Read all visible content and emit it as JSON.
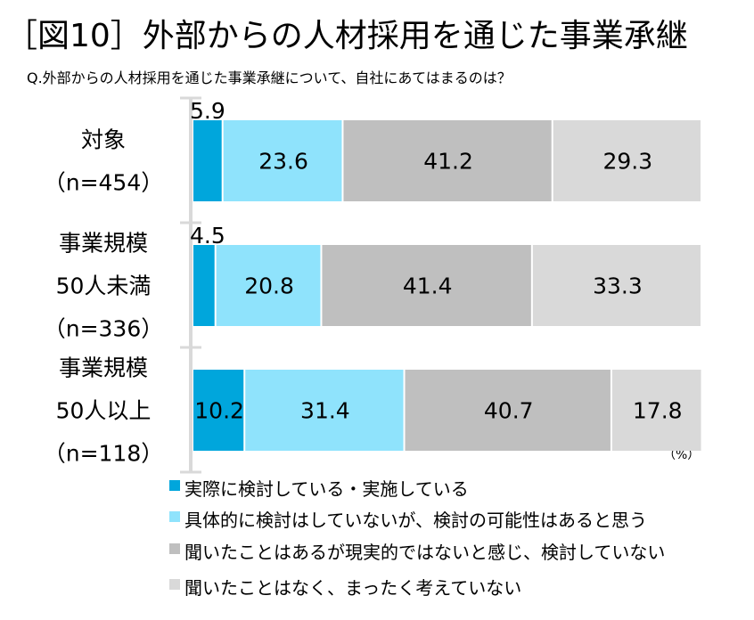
{
  "chart_data": {
    "type": "bar",
    "orientation": "horizontal",
    "stacked": true,
    "title": "［図10］外部からの人材採用を通じた事業承継",
    "subtitle": "Q.外部からの人材採用を通じた事業承継について、自社にあてはまるのは？",
    "unit_label": "（%）",
    "categories": [
      [
        "対象",
        "（n=454）"
      ],
      [
        "事業規模",
        "50人未満",
        "（n=336）"
      ],
      [
        "事業規模",
        "50人以上",
        "（n=118）"
      ]
    ],
    "series": [
      {
        "name": "実際に検討している・実施している",
        "color": "#00a6dc",
        "values": [
          5.9,
          4.5,
          10.2
        ]
      },
      {
        "name": "具体的に検討はしていないが、検討の可能性はあると思う",
        "color": "#8fe3fc",
        "values": [
          23.6,
          20.8,
          31.4
        ]
      },
      {
        "name": "聞いたことはあるが現実的ではないと感じ、検討していない",
        "color": "#bfbfbf",
        "values": [
          41.2,
          41.4,
          40.7
        ]
      },
      {
        "name": "聞いたことはなく、まったく考えていない",
        "color": "#d9d9d9",
        "values": [
          29.3,
          33.3,
          17.8
        ]
      }
    ],
    "xlim": [
      0,
      100
    ],
    "grid": false,
    "legend_position": "bottom"
  }
}
